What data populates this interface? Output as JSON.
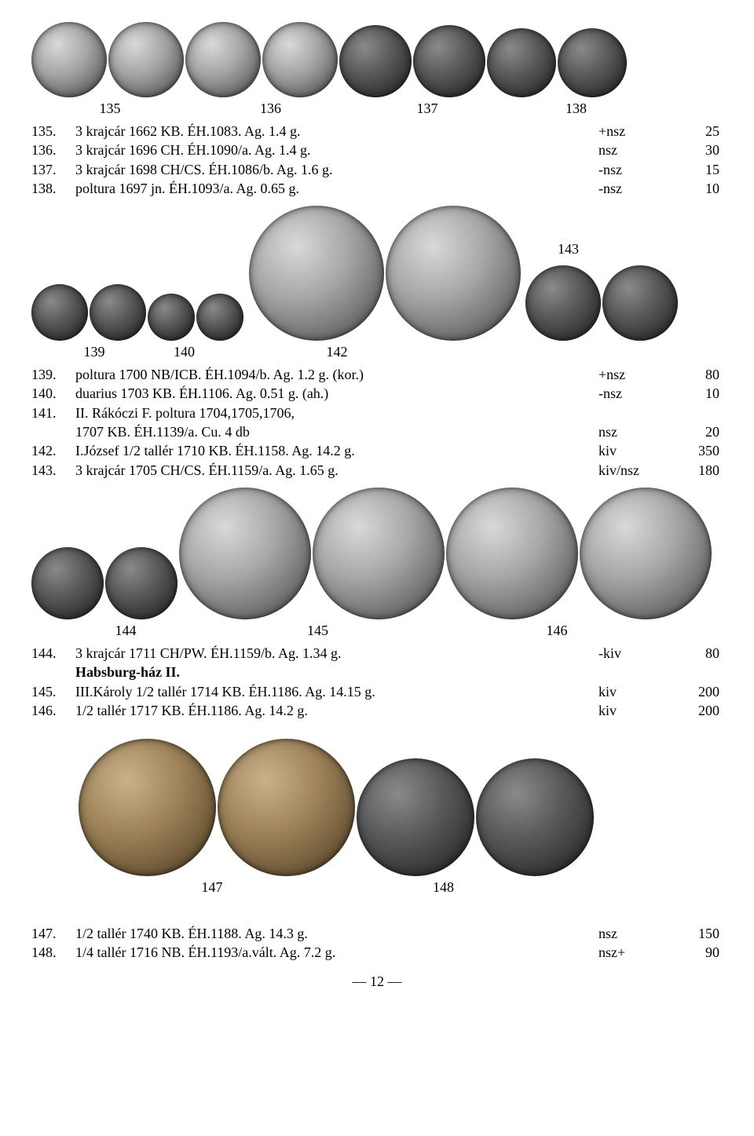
{
  "row1": {
    "labels": [
      "135",
      "136",
      "137",
      "138"
    ],
    "coins": [
      {
        "d": 96,
        "cls": ""
      },
      {
        "d": 96,
        "cls": ""
      },
      {
        "d": 96,
        "cls": ""
      },
      {
        "d": 96,
        "cls": ""
      },
      {
        "d": 92,
        "cls": "dark"
      },
      {
        "d": 92,
        "cls": "dark"
      },
      {
        "d": 88,
        "cls": "dark"
      },
      {
        "d": 88,
        "cls": "dark"
      }
    ]
  },
  "list1": [
    {
      "n": "135.",
      "d": "3 krajcár 1662 KB. ÉH.1083. Ag. 1.4 g.",
      "c": "+nsz",
      "p": "25"
    },
    {
      "n": "136.",
      "d": "3 krajcár 1696 CH. ÉH.1090/a. Ag. 1.4 g.",
      "c": "nsz",
      "p": "30"
    },
    {
      "n": "137.",
      "d": "3 krajcár 1698 CH/CS. ÉH.1086/b. Ag. 1.6 g.",
      "c": "-nsz",
      "p": "15"
    },
    {
      "n": "138.",
      "d": "poltura 1697 jn. ÉH.1093/a. Ag. 0.65 g.",
      "c": "-nsz",
      "p": "10"
    }
  ],
  "row2": {
    "labels": {
      "139": "139",
      "140": "140",
      "142": "142",
      "143": "143"
    },
    "coins_left": [
      {
        "d": 72,
        "cls": "dark"
      },
      {
        "d": 72,
        "cls": "dark"
      },
      {
        "d": 60,
        "cls": "dark"
      },
      {
        "d": 60,
        "cls": "dark"
      }
    ],
    "coins_mid": [
      {
        "d": 172,
        "cls": ""
      },
      {
        "d": 172,
        "cls": ""
      }
    ],
    "coins_right": [
      {
        "d": 96,
        "cls": "dark"
      },
      {
        "d": 96,
        "cls": "dark"
      }
    ]
  },
  "list2": [
    {
      "n": "139.",
      "d": "poltura 1700 NB/ICB. ÉH.1094/b. Ag. 1.2 g. (kor.)",
      "c": "+nsz",
      "p": "80"
    },
    {
      "n": "140.",
      "d": "duarius 1703 KB. ÉH.1106. Ag. 0.51 g. (ah.)",
      "c": "-nsz",
      "p": "10"
    },
    {
      "n": "141.",
      "d": "II. Rákóczi F. poltura 1704,1705,1706,",
      "c": "",
      "p": ""
    },
    {
      "n": "",
      "d": "1707 KB. ÉH.1139/a. Cu. 4 db",
      "c": "nsz",
      "p": "20"
    },
    {
      "n": "142.",
      "d": "I.József 1/2 tallér 1710 KB. ÉH.1158. Ag. 14.2 g.",
      "c": "kiv",
      "p": "350"
    },
    {
      "n": "143.",
      "d": "3 krajcár 1705 CH/CS. ÉH.1159/a. Ag. 1.65 g.",
      "c": "kiv/nsz",
      "p": "180"
    }
  ],
  "row3": {
    "labels": [
      "144",
      "145",
      "146"
    ],
    "coins": [
      {
        "d": 92,
        "cls": "dark"
      },
      {
        "d": 92,
        "cls": "dark"
      },
      {
        "d": 168,
        "cls": ""
      },
      {
        "d": 168,
        "cls": ""
      },
      {
        "d": 168,
        "cls": ""
      },
      {
        "d": 168,
        "cls": ""
      }
    ]
  },
  "list3": [
    {
      "n": "144.",
      "d": "3 krajcár 1711 CH/PW. ÉH.1159/b. Ag. 1.34 g.",
      "c": "-kiv",
      "p": "80"
    },
    {
      "n": "",
      "d_bold": "Habsburg-ház II.",
      "c": "",
      "p": ""
    },
    {
      "n": "145.",
      "d": "III.Károly 1/2 tallér 1714 KB. ÉH.1186. Ag. 14.15 g.",
      "c": "kiv",
      "p": "200"
    },
    {
      "n": "146.",
      "d": "1/2 tallér 1717 KB. ÉH.1186. Ag. 14.2 g.",
      "c": "kiv",
      "p": "200"
    }
  ],
  "row4": {
    "labels": [
      "147",
      "148"
    ],
    "coins": [
      {
        "d": 175,
        "cls": "bronze"
      },
      {
        "d": 175,
        "cls": "bronze"
      },
      {
        "d": 150,
        "cls": "dark"
      },
      {
        "d": 150,
        "cls": "dark"
      }
    ]
  },
  "list4": [
    {
      "n": "147.",
      "d": "1/2 tallér 1740 KB. ÉH.1188. Ag. 14.3 g.",
      "c": "nsz",
      "p": "150"
    },
    {
      "n": "148.",
      "d": "1/4 tallér 1716 NB. ÉH.1193/a.vált. Ag. 7.2 g.",
      "c": "nsz+",
      "p": "90"
    }
  ],
  "page": "— 12 —"
}
